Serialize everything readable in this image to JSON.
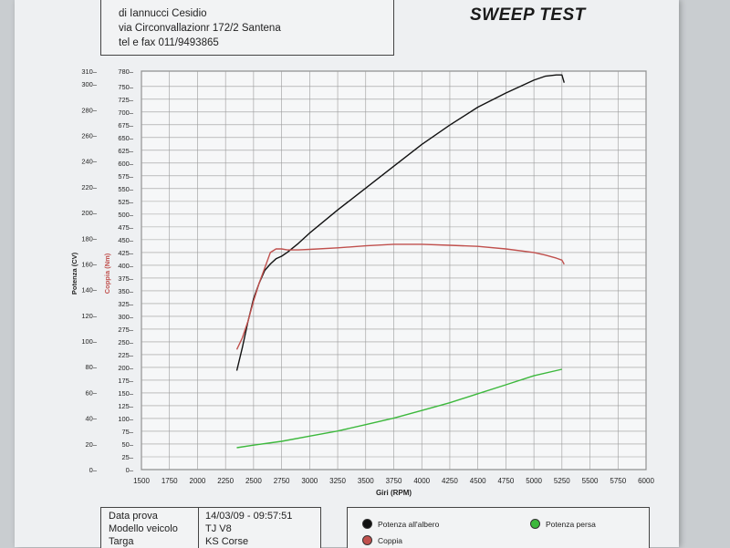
{
  "header": {
    "company_line": "di Iannucci Cesidio",
    "address_line": "via Circonvallazionr 172/2 Santena",
    "phone_line": "tel e fax 011/9493865",
    "title": "SWEEP TEST"
  },
  "info": {
    "rows": [
      {
        "label": "Data prova",
        "value": "14/03/09 - 09:57:51"
      },
      {
        "label": "Modello veicolo",
        "value": "TJ V8"
      },
      {
        "label": "Targa",
        "value": "KS Corse"
      }
    ]
  },
  "legend": {
    "items": [
      {
        "label": "Potenza all'albero",
        "color": "#111111"
      },
      {
        "label": "Potenza persa",
        "color": "#3cb83c"
      },
      {
        "label": "Coppia",
        "color": "#c0504d"
      }
    ]
  },
  "chart_data": {
    "type": "line",
    "xlabel": "Giri (RPM)",
    "ylabel_left": "Potenza (CV)",
    "ylabel_right": "Coppia (Nm)",
    "xlim": [
      1500,
      6000
    ],
    "x_ticks": [
      1500,
      1750,
      2000,
      2250,
      2500,
      2750,
      3000,
      3250,
      3500,
      3750,
      4000,
      4250,
      4500,
      4750,
      5000,
      5250,
      5500,
      5750,
      6000
    ],
    "ylim_power": [
      0,
      310
    ],
    "power_ticks": [
      0,
      20,
      40,
      60,
      80,
      100,
      120,
      140,
      160,
      180,
      200,
      220,
      240,
      260,
      280,
      300,
      310
    ],
    "ylim_torque": [
      0,
      780
    ],
    "torque_ticks": [
      0,
      25,
      50,
      75,
      100,
      125,
      150,
      175,
      200,
      225,
      250,
      275,
      300,
      325,
      350,
      375,
      400,
      425,
      450,
      475,
      500,
      525,
      550,
      575,
      600,
      625,
      650,
      675,
      700,
      725,
      750,
      780
    ],
    "grid": true,
    "series": [
      {
        "name": "Potenza all'albero",
        "axis": "power",
        "color": "#111111",
        "x": [
          2350,
          2400,
          2450,
          2500,
          2550,
          2600,
          2650,
          2700,
          2750,
          2800,
          2900,
          3000,
          3250,
          3500,
          3750,
          4000,
          4250,
          4500,
          4750,
          5000,
          5100,
          5200,
          5250,
          5270
        ],
        "y": [
          77,
          95,
          115,
          133,
          145,
          155,
          160,
          164,
          166,
          169,
          176,
          184,
          202,
          219,
          236,
          253,
          268,
          282,
          293,
          303,
          306,
          307,
          307,
          301
        ]
      },
      {
        "name": "Coppia",
        "axis": "torque",
        "color": "#c0504d",
        "x": [
          2350,
          2400,
          2450,
          2500,
          2550,
          2600,
          2650,
          2700,
          2750,
          2800,
          2900,
          3000,
          3250,
          3500,
          3750,
          3900,
          4000,
          4250,
          4500,
          4750,
          5000,
          5100,
          5200,
          5250,
          5270
        ],
        "y": [
          235,
          258,
          290,
          330,
          365,
          395,
          425,
          432,
          432,
          430,
          430,
          431,
          434,
          438,
          441,
          441,
          441,
          439,
          437,
          432,
          425,
          420,
          414,
          410,
          402
        ]
      },
      {
        "name": "Potenza persa",
        "axis": "power",
        "color": "#3cb83c",
        "x": [
          2350,
          2500,
          2750,
          3000,
          3250,
          3500,
          3750,
          4000,
          4250,
          4500,
          4750,
          5000,
          5250
        ],
        "y": [
          17,
          19,
          22,
          26,
          30,
          35,
          40,
          46,
          52,
          59,
          66,
          73,
          78
        ]
      }
    ]
  }
}
